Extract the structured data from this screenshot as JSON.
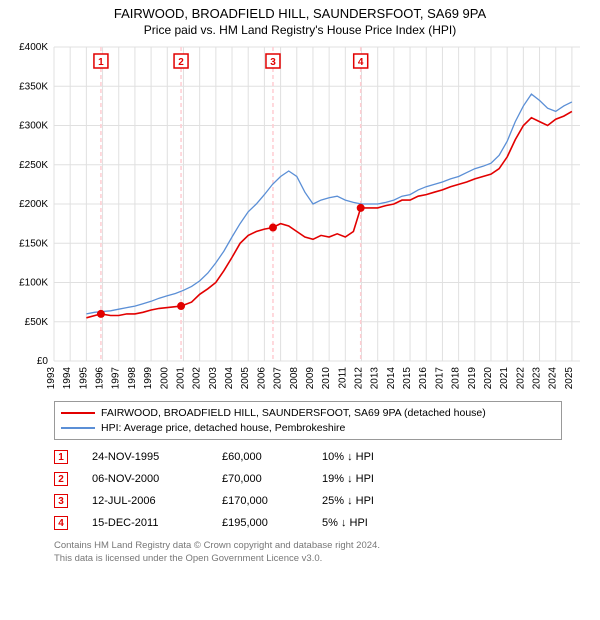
{
  "title": "FAIRWOOD, BROADFIELD HILL, SAUNDERSFOOT, SA69 9PA",
  "subtitle": "Price paid vs. HM Land Registry's House Price Index (HPI)",
  "chart": {
    "type": "line",
    "background_color": "#ffffff",
    "grid_color": "#e0e0e0",
    "event_line_color": "#ffcdd2",
    "xlim": [
      1993,
      2025.5
    ],
    "ylim": [
      0,
      400000
    ],
    "ytick_step": 50000,
    "ytick_prefix": "£",
    "ytick_suffix": "K",
    "ytick_labels": [
      "£0",
      "£50K",
      "£100K",
      "£150K",
      "£200K",
      "£250K",
      "£300K",
      "£350K",
      "£400K"
    ],
    "xticks": [
      1993,
      1994,
      1995,
      1996,
      1997,
      1998,
      1999,
      2000,
      2001,
      2002,
      2003,
      2004,
      2005,
      2006,
      2007,
      2008,
      2009,
      2010,
      2011,
      2012,
      2013,
      2014,
      2015,
      2016,
      2017,
      2018,
      2019,
      2020,
      2021,
      2022,
      2023,
      2024,
      2025
    ],
    "label_fontsize": 10,
    "series": [
      {
        "id": "property",
        "label": "FAIRWOOD, BROADFIELD HILL, SAUNDERSFOOT, SA69 9PA (detached house)",
        "color": "#e20000",
        "line_width": 1.6,
        "points": [
          [
            1995.0,
            55000
          ],
          [
            1995.9,
            60000
          ],
          [
            1996.5,
            58000
          ],
          [
            1997.0,
            58000
          ],
          [
            1997.5,
            60000
          ],
          [
            1998.0,
            60000
          ],
          [
            1998.5,
            62000
          ],
          [
            1999.0,
            65000
          ],
          [
            1999.5,
            67000
          ],
          [
            2000.0,
            68000
          ],
          [
            2000.85,
            70000
          ],
          [
            2001.5,
            75000
          ],
          [
            2002.0,
            85000
          ],
          [
            2002.5,
            92000
          ],
          [
            2003.0,
            100000
          ],
          [
            2003.5,
            115000
          ],
          [
            2004.0,
            132000
          ],
          [
            2004.5,
            150000
          ],
          [
            2005.0,
            160000
          ],
          [
            2005.5,
            165000
          ],
          [
            2006.0,
            168000
          ],
          [
            2006.5,
            170000
          ],
          [
            2007.0,
            175000
          ],
          [
            2007.5,
            172000
          ],
          [
            2008.0,
            165000
          ],
          [
            2008.5,
            158000
          ],
          [
            2009.0,
            155000
          ],
          [
            2009.5,
            160000
          ],
          [
            2010.0,
            158000
          ],
          [
            2010.5,
            162000
          ],
          [
            2011.0,
            158000
          ],
          [
            2011.5,
            165000
          ],
          [
            2011.95,
            195000
          ],
          [
            2012.5,
            195000
          ],
          [
            2013.0,
            195000
          ],
          [
            2013.5,
            198000
          ],
          [
            2014.0,
            200000
          ],
          [
            2014.5,
            205000
          ],
          [
            2015.0,
            205000
          ],
          [
            2015.5,
            210000
          ],
          [
            2016.0,
            212000
          ],
          [
            2016.5,
            215000
          ],
          [
            2017.0,
            218000
          ],
          [
            2017.5,
            222000
          ],
          [
            2018.0,
            225000
          ],
          [
            2018.5,
            228000
          ],
          [
            2019.0,
            232000
          ],
          [
            2019.5,
            235000
          ],
          [
            2020.0,
            238000
          ],
          [
            2020.5,
            245000
          ],
          [
            2021.0,
            260000
          ],
          [
            2021.5,
            282000
          ],
          [
            2022.0,
            300000
          ],
          [
            2022.5,
            310000
          ],
          [
            2023.0,
            305000
          ],
          [
            2023.5,
            300000
          ],
          [
            2024.0,
            308000
          ],
          [
            2024.5,
            312000
          ],
          [
            2025.0,
            318000
          ]
        ]
      },
      {
        "id": "hpi",
        "label": "HPI: Average price, detached house, Pembrokeshire",
        "color": "#5b8fd6",
        "line_width": 1.3,
        "points": [
          [
            1995.0,
            60000
          ],
          [
            1995.5,
            62000
          ],
          [
            1996.0,
            63000
          ],
          [
            1996.5,
            64000
          ],
          [
            1997.0,
            66000
          ],
          [
            1997.5,
            68000
          ],
          [
            1998.0,
            70000
          ],
          [
            1998.5,
            73000
          ],
          [
            1999.0,
            76000
          ],
          [
            1999.5,
            80000
          ],
          [
            2000.0,
            83000
          ],
          [
            2000.5,
            86000
          ],
          [
            2001.0,
            90000
          ],
          [
            2001.5,
            95000
          ],
          [
            2002.0,
            102000
          ],
          [
            2002.5,
            112000
          ],
          [
            2003.0,
            125000
          ],
          [
            2003.5,
            140000
          ],
          [
            2004.0,
            158000
          ],
          [
            2004.5,
            175000
          ],
          [
            2005.0,
            190000
          ],
          [
            2005.5,
            200000
          ],
          [
            2006.0,
            212000
          ],
          [
            2006.5,
            225000
          ],
          [
            2007.0,
            235000
          ],
          [
            2007.5,
            242000
          ],
          [
            2008.0,
            235000
          ],
          [
            2008.5,
            215000
          ],
          [
            2009.0,
            200000
          ],
          [
            2009.5,
            205000
          ],
          [
            2010.0,
            208000
          ],
          [
            2010.5,
            210000
          ],
          [
            2011.0,
            205000
          ],
          [
            2011.5,
            202000
          ],
          [
            2012.0,
            200000
          ],
          [
            2012.5,
            200000
          ],
          [
            2013.0,
            200000
          ],
          [
            2013.5,
            202000
          ],
          [
            2014.0,
            205000
          ],
          [
            2014.5,
            210000
          ],
          [
            2015.0,
            212000
          ],
          [
            2015.5,
            218000
          ],
          [
            2016.0,
            222000
          ],
          [
            2016.5,
            225000
          ],
          [
            2017.0,
            228000
          ],
          [
            2017.5,
            232000
          ],
          [
            2018.0,
            235000
          ],
          [
            2018.5,
            240000
          ],
          [
            2019.0,
            245000
          ],
          [
            2019.5,
            248000
          ],
          [
            2020.0,
            252000
          ],
          [
            2020.5,
            262000
          ],
          [
            2021.0,
            280000
          ],
          [
            2021.5,
            305000
          ],
          [
            2022.0,
            325000
          ],
          [
            2022.5,
            340000
          ],
          [
            2023.0,
            332000
          ],
          [
            2023.5,
            322000
          ],
          [
            2024.0,
            318000
          ],
          [
            2024.5,
            325000
          ],
          [
            2025.0,
            330000
          ]
        ]
      }
    ],
    "markers": [
      {
        "x": 1995.9,
        "y": 60000,
        "color": "#e20000",
        "size": 4
      },
      {
        "x": 2000.85,
        "y": 70000,
        "color": "#e20000",
        "size": 4
      },
      {
        "x": 2006.53,
        "y": 170000,
        "color": "#e20000",
        "size": 4
      },
      {
        "x": 2011.95,
        "y": 195000,
        "color": "#e20000",
        "size": 4
      }
    ],
    "events": [
      {
        "n": "1",
        "x": 1995.9,
        "date": "24-NOV-1995",
        "price": "£60,000",
        "diff": "10% ↓ HPI",
        "color": "#e20000"
      },
      {
        "n": "2",
        "x": 2000.85,
        "date": "06-NOV-2000",
        "price": "£70,000",
        "diff": "19% ↓ HPI",
        "color": "#e20000"
      },
      {
        "n": "3",
        "x": 2006.53,
        "date": "12-JUL-2006",
        "price": "£170,000",
        "diff": "25% ↓ HPI",
        "color": "#e20000"
      },
      {
        "n": "4",
        "x": 2011.95,
        "date": "15-DEC-2011",
        "price": "£195,000",
        "diff": "5% ↓ HPI",
        "color": "#e20000"
      }
    ]
  },
  "legend_border_color": "#999999",
  "footnote_line1": "Contains HM Land Registry data © Crown copyright and database right 2024.",
  "footnote_line2": "This data is licensed under the Open Government Licence v3.0.",
  "footnote_color": "#888888"
}
